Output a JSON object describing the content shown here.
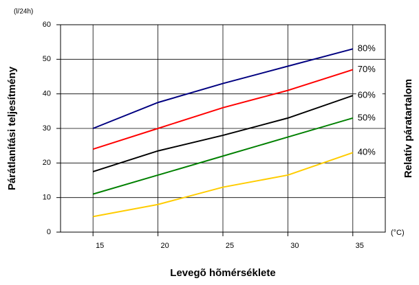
{
  "chart_data": {
    "type": "line",
    "y_label": "Párátlanítási teljesítmény",
    "y_unit": "(l/24h)",
    "x_label": "Levegõ hõmérséklete",
    "x_unit": "(°C)",
    "y2_label": "Relatív páratartalom",
    "x": [
      15,
      20,
      25,
      30,
      35
    ],
    "series": [
      {
        "name": "80%",
        "color": "#000080",
        "values": [
          30,
          37.5,
          43,
          48,
          53
        ]
      },
      {
        "name": "70%",
        "color": "#ff0000",
        "values": [
          24,
          30,
          36,
          41,
          47
        ]
      },
      {
        "name": "60%",
        "color": "#000000",
        "values": [
          17.5,
          23.5,
          28,
          33,
          39.5
        ]
      },
      {
        "name": "50%",
        "color": "#008000",
        "values": [
          11,
          16.5,
          22,
          27.5,
          33
        ]
      },
      {
        "name": "40%",
        "color": "#ffcc00",
        "values": [
          4.5,
          8,
          13,
          16.5,
          23
        ]
      }
    ],
    "xlim": [
      12.5,
      37.5
    ],
    "xticks": [
      15,
      20,
      25,
      30,
      35
    ],
    "ylim": [
      0,
      60
    ],
    "yticks": [
      0,
      10,
      20,
      30,
      40,
      50,
      60
    ],
    "grid": true
  }
}
